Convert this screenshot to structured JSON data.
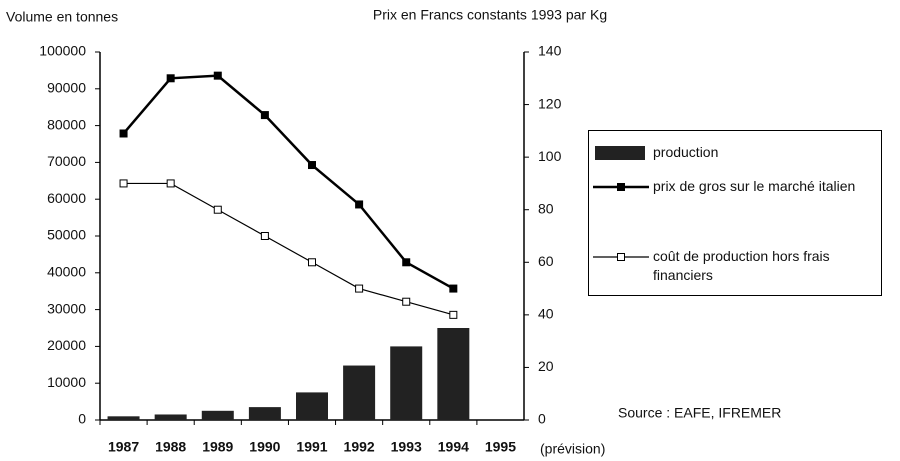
{
  "chart_data": {
    "type": "bar",
    "ylabel": "Volume en tonnes",
    "y2label": "Prix en Francs constants 1993 par Kg",
    "source": "Source : EAFE,  IFREMER",
    "annotation": "(prévision)",
    "categories": [
      "1987",
      "1988",
      "1989",
      "1990",
      "1991",
      "1992",
      "1993",
      "1994",
      "1995"
    ],
    "series": [
      {
        "name": "production",
        "type": "bar",
        "color": "#222222",
        "values": [
          1000,
          1500,
          2500,
          3500,
          7500,
          14800,
          20000,
          25000,
          null
        ]
      },
      {
        "name": "prix de gros sur le marché italien",
        "type": "line",
        "axis": "y2",
        "color": "#000000",
        "marker": "filled",
        "values": [
          109,
          130,
          131,
          116,
          97,
          82,
          60,
          50,
          null
        ]
      },
      {
        "name": "coût de production hors frais financiers",
        "type": "line",
        "axis": "y2",
        "color": "#000000",
        "marker": "open",
        "values": [
          90,
          90,
          80,
          70,
          60,
          50,
          45,
          40,
          null
        ]
      }
    ],
    "ylim": [
      0,
      100000
    ],
    "yticks": [
      0,
      10000,
      20000,
      30000,
      40000,
      50000,
      60000,
      70000,
      80000,
      90000,
      100000
    ],
    "y2lim": [
      0,
      140
    ],
    "y2ticks": [
      0,
      20,
      40,
      60,
      80,
      100,
      120,
      140
    ],
    "grid": false,
    "legend": "right"
  }
}
